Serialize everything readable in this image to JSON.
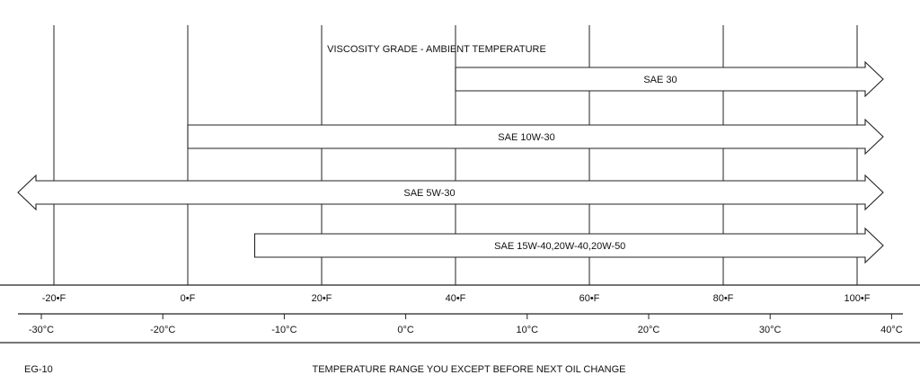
{
  "title": "VISCOSITY GRADE - AMBIENT TEMPERATURE",
  "footer": {
    "code": "EG-10",
    "caption": "TEMPERATURE RANGE YOU EXCEPT BEFORE NEXT OIL CHANGE"
  },
  "chart_data": {
    "type": "range-arrows",
    "fahrenheit_ticks": [
      {
        "value": -20,
        "label": "-20•F"
      },
      {
        "value": 0,
        "label": "0•F"
      },
      {
        "value": 20,
        "label": "20•F"
      },
      {
        "value": 40,
        "label": "40•F"
      },
      {
        "value": 60,
        "label": "60•F"
      },
      {
        "value": 80,
        "label": "80•F"
      },
      {
        "value": 100,
        "label": "100•F"
      }
    ],
    "celsius_ticks": [
      {
        "value": -30,
        "label": "-30°C"
      },
      {
        "value": -20,
        "label": "-20°C"
      },
      {
        "value": -10,
        "label": "-10°C"
      },
      {
        "value": 0,
        "label": "0°C"
      },
      {
        "value": 10,
        "label": "10°C"
      },
      {
        "value": 20,
        "label": "20°C"
      },
      {
        "value": 30,
        "label": "30°C"
      },
      {
        "value": 40,
        "label": "40°C"
      }
    ],
    "grades": [
      {
        "name": "SAE 30",
        "from_f": 40,
        "to_f": null,
        "open_low": false,
        "open_high": true
      },
      {
        "name": "SAE 10W-30",
        "from_f": 0,
        "to_f": null,
        "open_low": false,
        "open_high": true
      },
      {
        "name": "SAE 5W-30",
        "from_f": null,
        "to_f": null,
        "open_low": true,
        "open_high": true
      },
      {
        "name": "SAE 15W-40,20W-40,20W-50",
        "from_f": 10,
        "to_f": null,
        "open_low": false,
        "open_high": true
      }
    ]
  }
}
